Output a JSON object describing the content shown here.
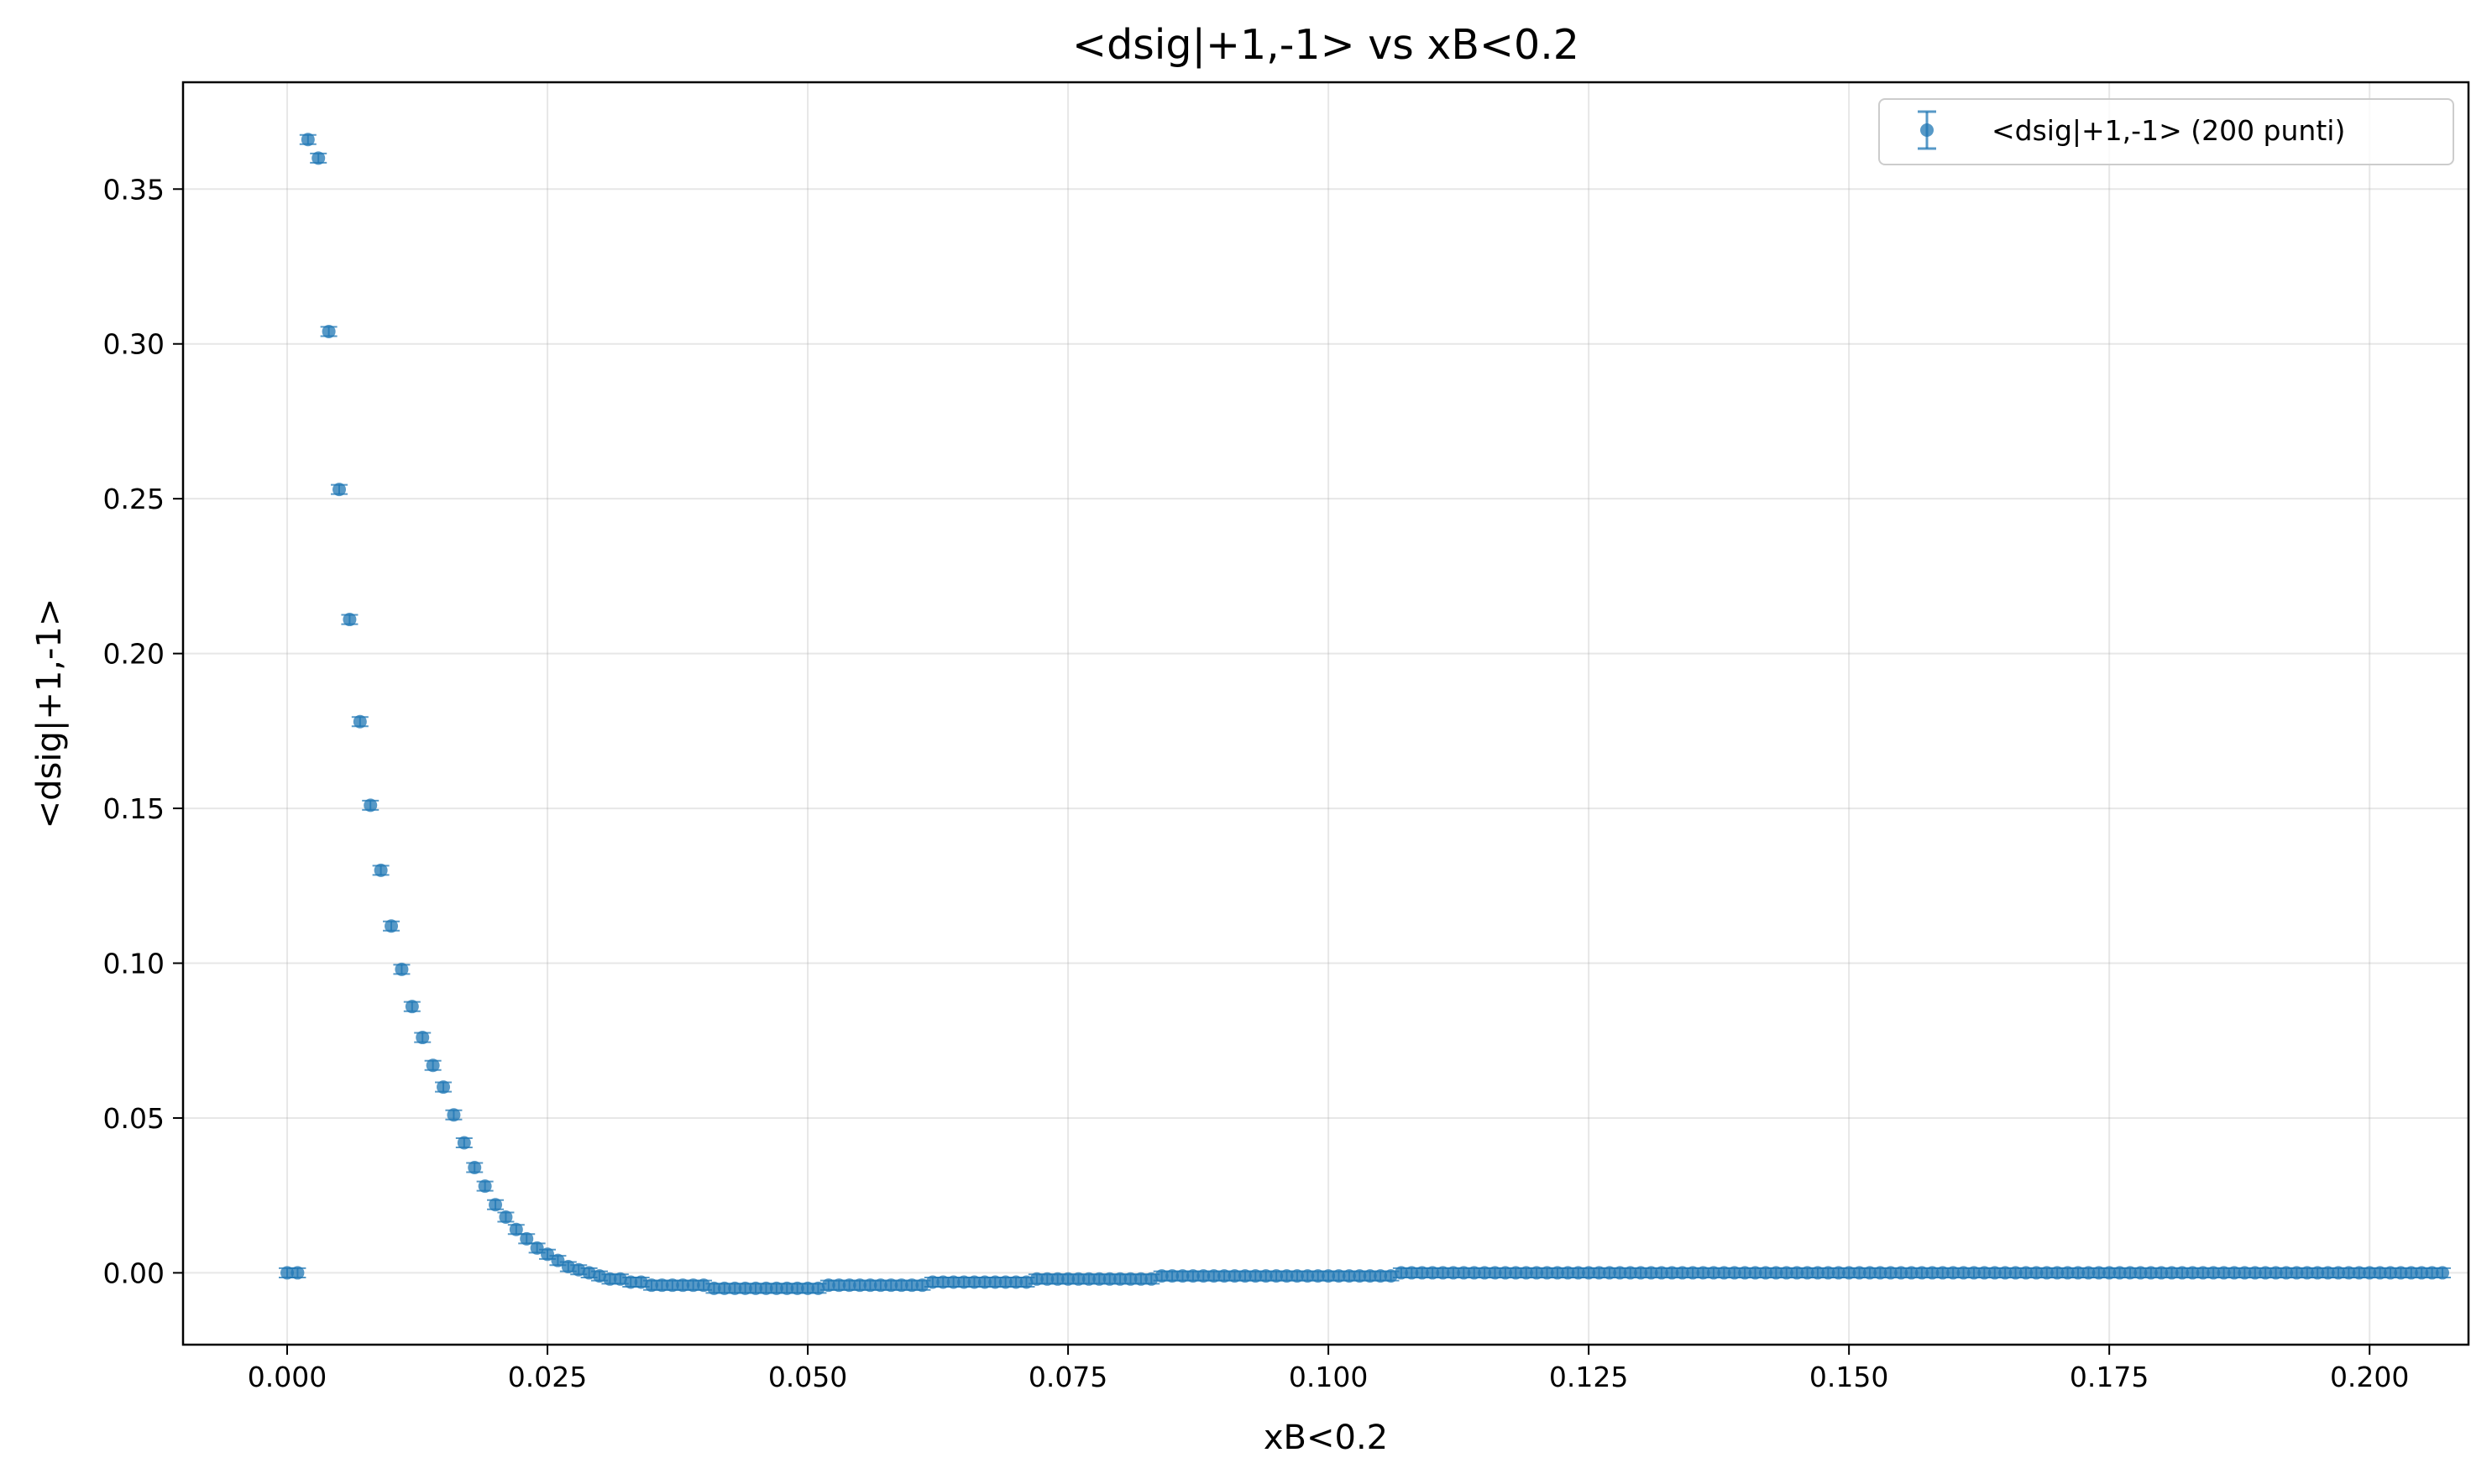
{
  "chart_data": {
    "type": "scatter",
    "title": "<dsig|+1,-1> vs xB<0.2",
    "xlabel": "xB<0.2",
    "ylabel": "<dsig|+1,-1>",
    "xlim": [
      -0.01,
      0.2095
    ],
    "ylim": [
      -0.0232,
      0.3845
    ],
    "grid": true,
    "legend_position": "top-right",
    "x_ticks": [
      "0.000",
      "0.025",
      "0.050",
      "0.075",
      "0.100",
      "0.125",
      "0.150",
      "0.175",
      "0.200"
    ],
    "y_ticks": [
      "0.00",
      "0.05",
      "0.10",
      "0.15",
      "0.20",
      "0.25",
      "0.30",
      "0.35"
    ],
    "series": [
      {
        "name": "<dsig|+1,-1> (200 punti)",
        "color": "#1f77b4",
        "marker": "circle with error bars",
        "x_start": 0.0,
        "x_step": 0.001,
        "y": [
          0.0,
          0.0,
          0.366,
          0.36,
          0.304,
          0.253,
          0.211,
          0.178,
          0.151,
          0.13,
          0.112,
          0.098,
          0.086,
          0.076,
          0.067,
          0.06,
          0.051,
          0.042,
          0.034,
          0.028,
          0.022,
          0.018,
          0.014,
          0.011,
          0.008,
          0.006,
          0.004,
          0.002,
          0.001,
          0.0,
          -0.001,
          -0.002,
          -0.002,
          -0.003,
          -0.003,
          -0.004,
          -0.004,
          -0.004,
          -0.004,
          -0.004,
          -0.004,
          -0.005,
          -0.005,
          -0.005,
          -0.005,
          -0.005,
          -0.005,
          -0.005,
          -0.005,
          -0.005,
          -0.005,
          -0.005,
          -0.004,
          -0.004,
          -0.004,
          -0.004,
          -0.004,
          -0.004,
          -0.004,
          -0.004,
          -0.004,
          -0.004,
          -0.003,
          -0.003,
          -0.003,
          -0.003,
          -0.003,
          -0.003,
          -0.003,
          -0.003,
          -0.003,
          -0.003,
          -0.002,
          -0.002,
          -0.002,
          -0.002,
          -0.002,
          -0.002,
          -0.002,
          -0.002,
          -0.002,
          -0.002,
          -0.002,
          -0.002,
          -0.001,
          -0.001,
          -0.001,
          -0.001,
          -0.001,
          -0.001,
          -0.001,
          -0.001,
          -0.001,
          -0.001,
          -0.001,
          -0.001,
          -0.001,
          -0.001,
          -0.001,
          -0.001,
          -0.001,
          -0.001,
          -0.001,
          -0.001,
          -0.001,
          -0.001,
          -0.001,
          0.0,
          0.0,
          0.0,
          0.0,
          0.0,
          0.0,
          0.0,
          0.0,
          0.0,
          0.0,
          0.0,
          0.0,
          0.0,
          0.0,
          0.0,
          0.0,
          0.0,
          0.0,
          0.0,
          0.0,
          0.0,
          0.0,
          0.0,
          0.0,
          0.0,
          0.0,
          0.0,
          0.0,
          0.0,
          0.0,
          0.0,
          0.0,
          0.0,
          0.0,
          0.0,
          0.0,
          0.0,
          0.0,
          0.0,
          0.0,
          0.0,
          0.0,
          0.0,
          0.0,
          0.0,
          0.0,
          0.0,
          0.0,
          0.0,
          0.0,
          0.0,
          0.0,
          0.0,
          0.0,
          0.0,
          0.0,
          0.0,
          0.0,
          0.0,
          0.0,
          0.0,
          0.0,
          0.0,
          0.0,
          0.0,
          0.0,
          0.0,
          0.0,
          0.0,
          0.0,
          0.0,
          0.0,
          0.0,
          0.0,
          0.0,
          0.0,
          0.0,
          0.0,
          0.0,
          0.0,
          0.0,
          0.0,
          0.0,
          0.0,
          0.0,
          0.0,
          0.0,
          0.0,
          0.0,
          0.0,
          0.0,
          0.0,
          0.0,
          0.0,
          0.0,
          0.0,
          0.0,
          0.0,
          0.0,
          0.0,
          0.0
        ],
        "y_error": 0.0015
      }
    ]
  }
}
